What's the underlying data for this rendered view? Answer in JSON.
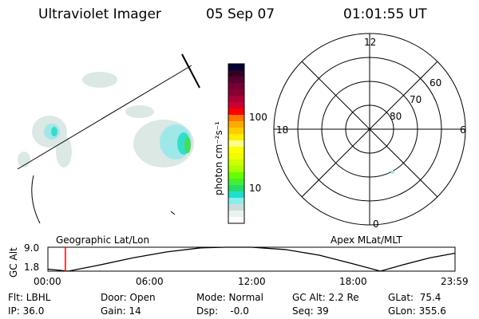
{
  "header": {
    "instrument": "Ultraviolet Imager",
    "date": "05 Sep 07",
    "time": "01:01:55 UT"
  },
  "colorbar": {
    "label": "photon cm⁻²s⁻¹",
    "ticks": [
      "100",
      "10"
    ],
    "colors": [
      "#000033",
      "#330022",
      "#550033",
      "#770033",
      "#880033",
      "#aa0033",
      "#cc0033",
      "#ff0000",
      "#ff7700",
      "#ffaa00",
      "#ffcc00",
      "#ffee00",
      "#ffff88",
      "#ffff00",
      "#eeff00",
      "#ccff00",
      "#aaff00",
      "#66ff00",
      "#44ee33",
      "#22dd66",
      "#22ddcc",
      "#88eeee",
      "#ccdddd",
      "#e8f4ee",
      "#ffffff"
    ]
  },
  "polar": {
    "mlt_labels": [
      "12",
      "18",
      "6",
      "0"
    ],
    "mlat_labels": [
      "60",
      "70",
      "80"
    ]
  },
  "panels": {
    "left_label": "Geographic Lat/Lon",
    "right_label": "Apex MLat/MLT"
  },
  "chart_data": {
    "type": "line",
    "ylabel": "GC Alt",
    "ytick_labels": [
      "9.0",
      "1.8"
    ],
    "ylim": [
      1.8,
      9.0
    ],
    "xtick_labels": [
      "00:00",
      "06:00",
      "12:00",
      "18:00",
      "23:59"
    ],
    "xlim": [
      0,
      24
    ],
    "x": [
      0,
      1.2,
      3,
      5,
      7,
      9,
      10.5,
      12,
      14,
      16,
      18,
      19.6,
      21,
      22.5,
      24
    ],
    "y": [
      2.4,
      1.8,
      3.6,
      5.8,
      7.6,
      8.8,
      9.0,
      9.0,
      8.3,
      6.6,
      4.0,
      1.8,
      3.8,
      5.8,
      7.2
    ],
    "marker_time": 1.03,
    "marker_color": "#ff0000"
  },
  "status": {
    "row1": [
      "Flt: LBHL",
      "Door: Open",
      "Mode: Normal",
      "GC Alt: 2.2 Re",
      "GLat:  75.4"
    ],
    "row2": [
      "IP: 36.0",
      "Gain: 14",
      "Dsp:    -0.0",
      "Seq: 39",
      "GLon: 355.6"
    ]
  }
}
